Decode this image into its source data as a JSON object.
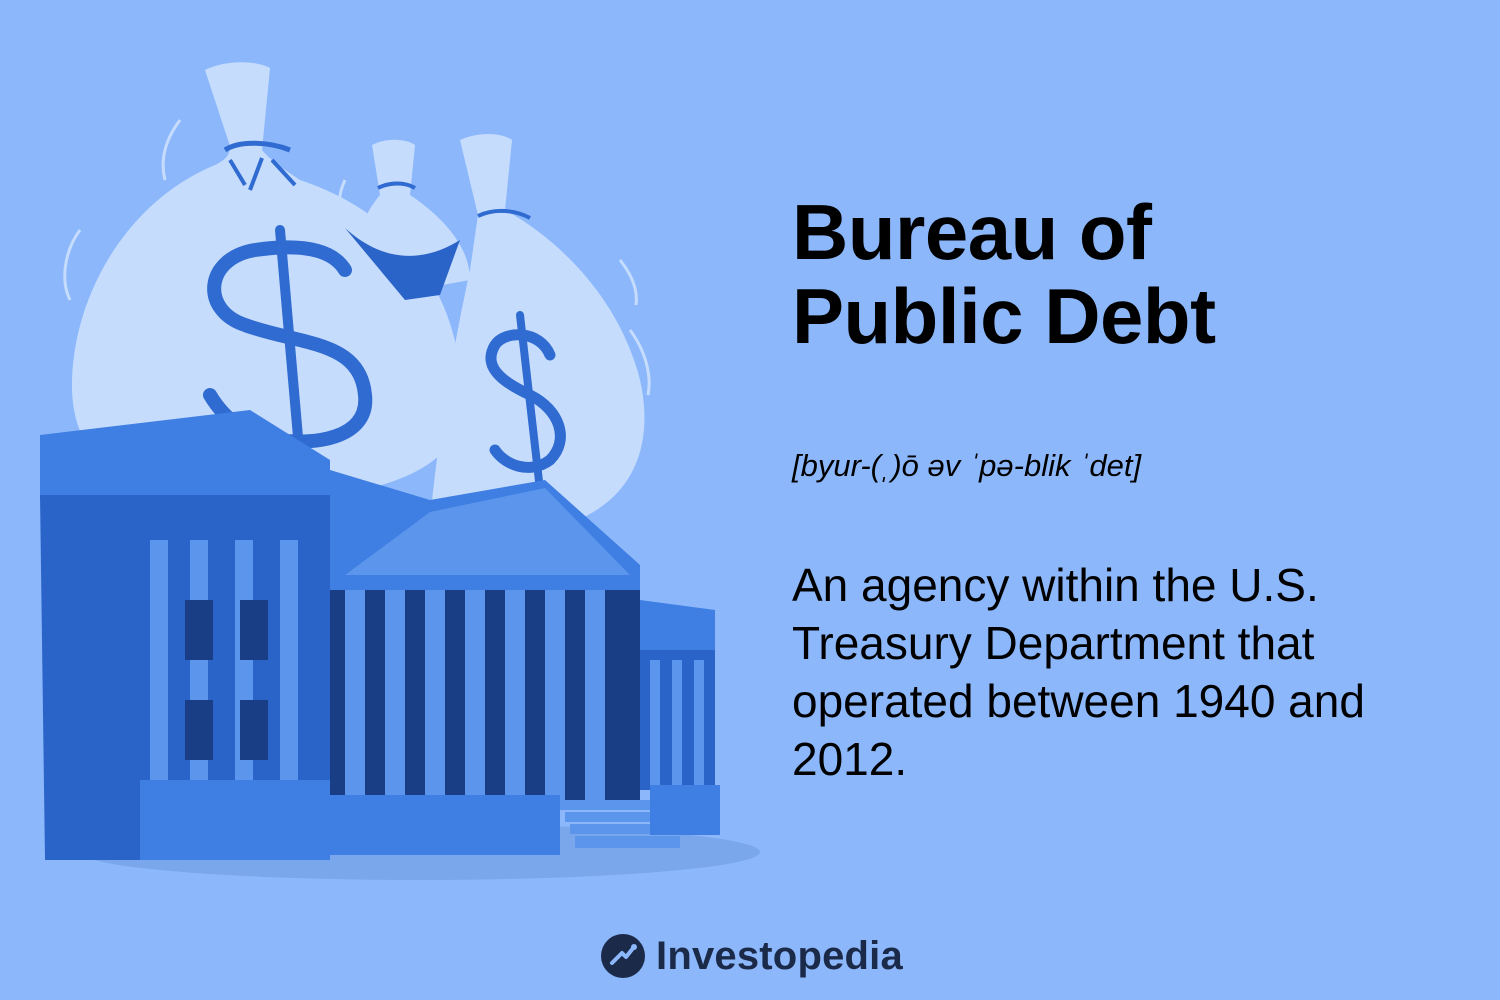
{
  "title": {
    "line1": "Bureau of",
    "line2": "Public Debt"
  },
  "pronunciation": "[byur-(ˌ)ō əv ˈpə-blik ˈdet]",
  "definition": "An agency within the U.S. Treasury Department that operated between 1940 and 2012.",
  "brand": {
    "name": "Investopedia",
    "icon": "investopedia-logo-icon"
  },
  "illustration": {
    "icons": [
      "money-bag-icon",
      "dollar-sign-icon",
      "treasury-building-icon"
    ]
  },
  "colors": {
    "background": "#8cb8fb",
    "bag": "#c6dcfd",
    "building_dark": "#2b64c8",
    "building_mid": "#3f7ee2",
    "building_light": "#5b95ec",
    "window_dark": "#1a3e86",
    "text": "#000000",
    "logo": "#1c2a4a"
  }
}
